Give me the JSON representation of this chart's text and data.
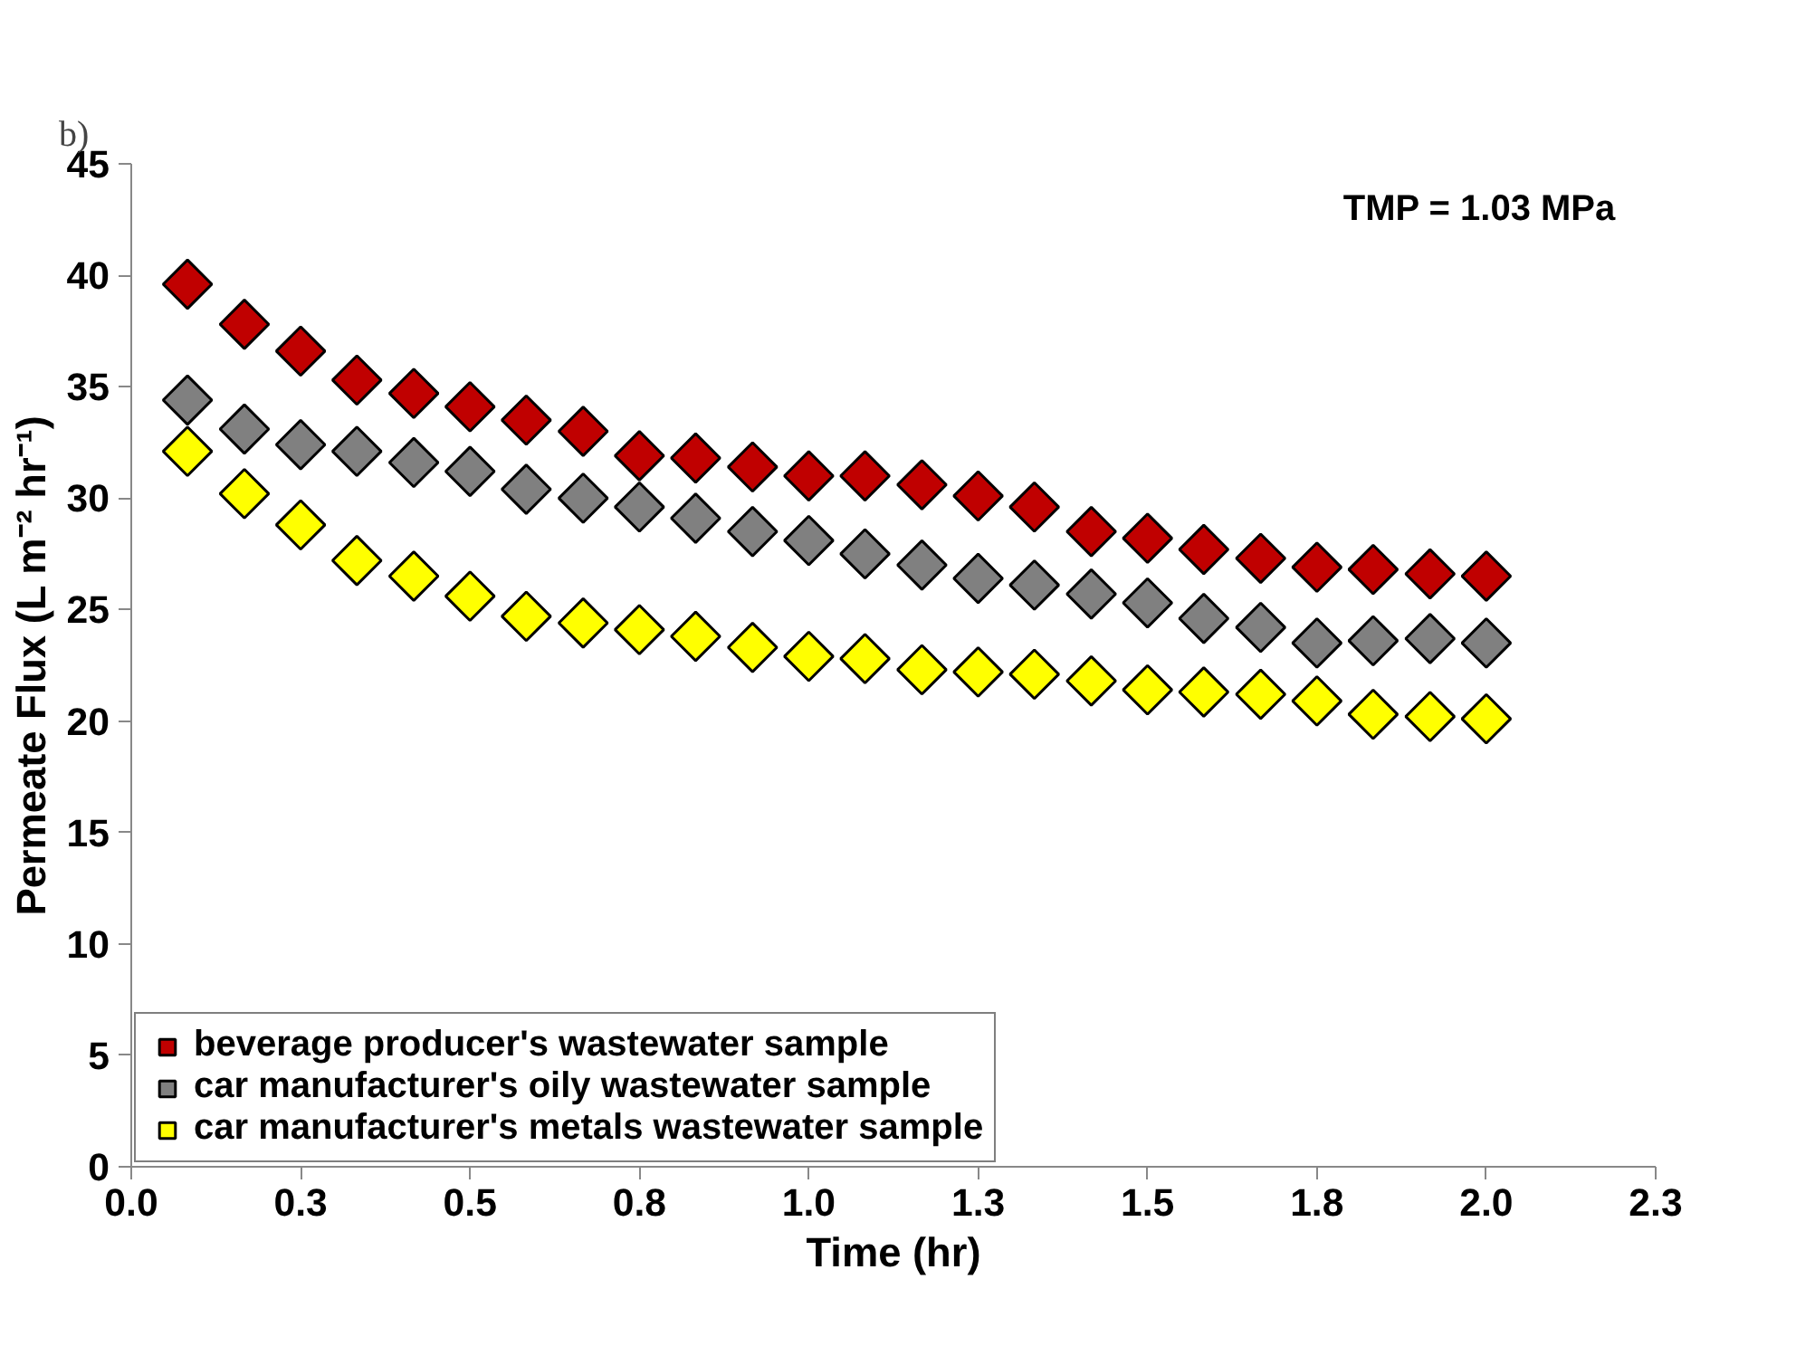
{
  "chart_data": {
    "type": "scatter",
    "xlabel": "Time (hr)",
    "ylabel": "Permeate Flux (L m⁻² hr⁻¹)",
    "annotations": [
      "b)",
      "TMP = 1.03 MPa"
    ],
    "x": [
      0.083,
      0.167,
      0.25,
      0.333,
      0.417,
      0.5,
      0.583,
      0.667,
      0.75,
      0.833,
      0.917,
      1.0,
      1.083,
      1.167,
      1.25,
      1.333,
      1.417,
      1.5,
      1.583,
      1.667,
      1.75,
      1.833,
      1.917,
      2.0
    ],
    "series": [
      {
        "name": "beverage producer's wastewater sample",
        "color": "#c00000",
        "values": [
          39.6,
          37.8,
          36.6,
          35.3,
          34.7,
          34.1,
          33.5,
          33.0,
          31.9,
          31.8,
          31.4,
          31.0,
          31.0,
          30.6,
          30.1,
          29.6,
          28.5,
          28.2,
          27.7,
          27.3,
          26.9,
          26.8,
          26.6,
          26.5
        ]
      },
      {
        "name": "car manufacturer's oily wastewater sample",
        "color": "#808080",
        "values": [
          34.4,
          33.1,
          32.4,
          32.1,
          31.6,
          31.2,
          30.4,
          30.0,
          29.6,
          29.1,
          28.5,
          28.1,
          27.5,
          27.0,
          26.4,
          26.1,
          25.7,
          25.3,
          24.6,
          24.2,
          23.5,
          23.6,
          23.7,
          23.5
        ]
      },
      {
        "name": "car manufacturer's metals wastewater sample",
        "color": "#ffff00",
        "values": [
          32.1,
          30.2,
          28.8,
          27.2,
          26.5,
          25.6,
          24.7,
          24.4,
          24.1,
          23.8,
          23.3,
          22.9,
          22.8,
          22.3,
          22.2,
          22.1,
          21.8,
          21.4,
          21.3,
          21.2,
          20.9,
          20.3,
          20.2,
          20.1
        ]
      }
    ],
    "xlim": [
      0,
      2.25
    ],
    "xticks": [
      {
        "value": 0,
        "label": "0.0"
      },
      {
        "value": 0.25,
        "label": "0.3"
      },
      {
        "value": 0.5,
        "label": "0.5"
      },
      {
        "value": 0.75,
        "label": "0.8"
      },
      {
        "value": 1,
        "label": "1.0"
      },
      {
        "value": 1.25,
        "label": "1.3"
      },
      {
        "value": 1.5,
        "label": "1.5"
      },
      {
        "value": 1.75,
        "label": "1.8"
      },
      {
        "value": 2,
        "label": "2.0"
      },
      {
        "value": 2.25,
        "label": "2.3"
      }
    ],
    "ylim": [
      0,
      45
    ],
    "yticks": [
      0,
      5,
      10,
      15,
      20,
      25,
      30,
      35,
      40,
      45
    ],
    "grid": false,
    "legend": "bottom left",
    "marker": "diamond"
  }
}
